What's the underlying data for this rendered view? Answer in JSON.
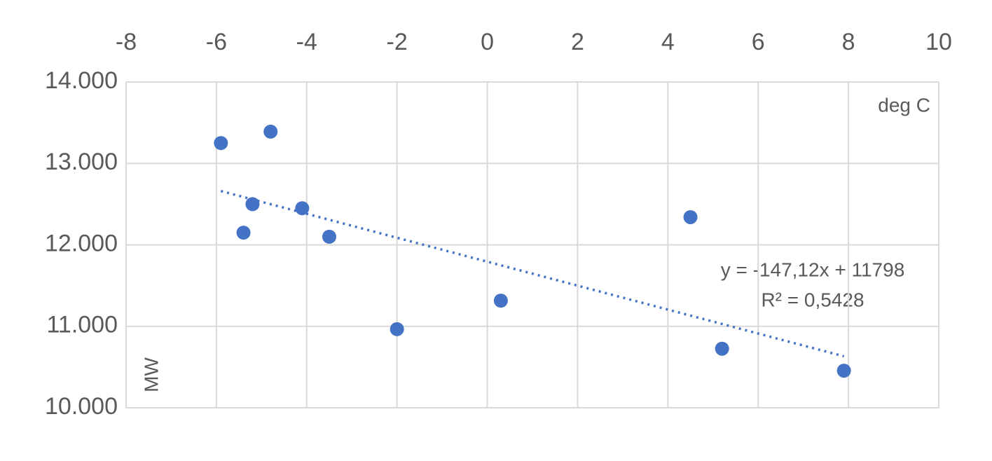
{
  "chart_data": {
    "type": "scatter",
    "x_axis_label": "deg C",
    "y_axis_label": "MW",
    "series": [
      {
        "name": "MW",
        "color": "#4472c4",
        "x": [
          -5.9,
          -4.8,
          -5.2,
          -5.4,
          -4.1,
          -3.5,
          -2.0,
          0.3,
          4.5,
          5.2,
          7.9
        ],
        "values": [
          13250,
          13390,
          12500,
          12150,
          12450,
          12100,
          10965,
          11315,
          12340,
          10725,
          10455
        ]
      }
    ],
    "trendline": {
      "equation": "y = -147,12x + 11798",
      "r_squared": "R² = 0,5428",
      "style": "dotted"
    },
    "xlim": [
      -8,
      10
    ],
    "xticks": [
      -8,
      -6,
      -4,
      -2,
      0,
      2,
      4,
      6,
      8,
      10
    ],
    "ylim": [
      10000,
      14000
    ],
    "yticks": [
      {
        "value": 10000,
        "label": "10.000"
      },
      {
        "value": 11000,
        "label": "11.000"
      },
      {
        "value": 12000,
        "label": "12.000"
      },
      {
        "value": 13000,
        "label": "13.000"
      },
      {
        "value": 14000,
        "label": "14.000"
      }
    ],
    "grid": true,
    "x_axis_position": "top"
  }
}
